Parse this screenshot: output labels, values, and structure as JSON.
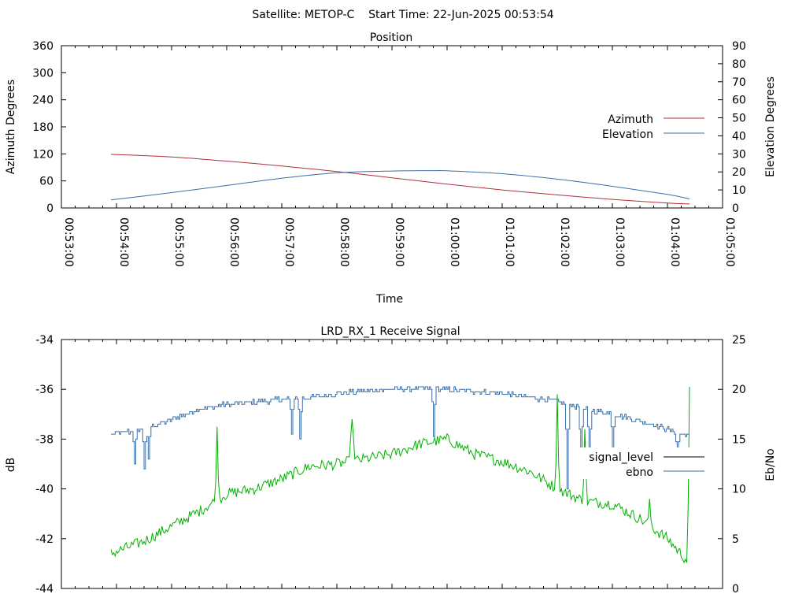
{
  "header": {
    "title": "Satellite: METOP-C    Start Time: 22-Jun-2025 00:53:54"
  },
  "colors": {
    "azimuth": "#b0303a",
    "elevation": "#3a6fa8",
    "signal": "#00b000",
    "signal_legend": "#000000",
    "ebno": "#3a6fa8"
  },
  "chart_data": [
    {
      "type": "line",
      "title": "Position",
      "xlabel": "Time",
      "ylabel": "Azimuth Degrees",
      "y2label": "Elevation Degrees",
      "xlim": [
        "00:53:00",
        "01:05:00"
      ],
      "ylim": [
        0,
        360
      ],
      "y2lim": [
        0,
        90
      ],
      "x_ticks": [
        "00:53:00",
        "00:54:00",
        "00:55:00",
        "00:56:00",
        "00:57:00",
        "00:58:00",
        "00:59:00",
        "01:00:00",
        "01:01:00",
        "01:02:00",
        "01:03:00",
        "01:04:00",
        "01:05:00"
      ],
      "y_ticks": [
        "0",
        "60",
        "120",
        "180",
        "240",
        "300",
        "360"
      ],
      "y2_ticks": [
        "0",
        "10",
        "20",
        "30",
        "40",
        "50",
        "60",
        "70",
        "80",
        "90"
      ],
      "legend_position": "right",
      "grid": false,
      "series": [
        {
          "name": "Azimuth",
          "axis": "left",
          "x": [
            "00:53:54",
            "00:55:00",
            "00:56:00",
            "00:57:00",
            "00:58:00",
            "00:59:00",
            "01:00:00",
            "01:01:00",
            "01:02:00",
            "01:03:00",
            "01:04:00",
            "01:04:24"
          ],
          "values": [
            119,
            113,
            104,
            93,
            81,
            67,
            53,
            40,
            29,
            19,
            11,
            9
          ]
        },
        {
          "name": "Elevation",
          "axis": "right",
          "x": [
            "00:53:54",
            "00:55:00",
            "00:56:00",
            "00:57:00",
            "00:58:00",
            "00:59:00",
            "00:59:45",
            "01:00:00",
            "01:01:00",
            "01:02:00",
            "01:03:00",
            "01:04:00",
            "01:04:24"
          ],
          "values": [
            4.5,
            8.5,
            12.5,
            16.5,
            19.5,
            20.5,
            20.7,
            20.6,
            19,
            16,
            12,
            7.5,
            5
          ]
        }
      ]
    },
    {
      "type": "line",
      "title": "LRD_RX_1 Receive Signal",
      "ylabel": "dB",
      "y2label": "Eb/No",
      "xlim": [
        "00:53:00",
        "01:05:00"
      ],
      "ylim": [
        -44,
        -34
      ],
      "y2lim": [
        0,
        25
      ],
      "y_ticks": [
        "-44",
        "-42",
        "-40",
        "-38",
        "-36",
        "-34"
      ],
      "y2_ticks": [
        "0",
        "5",
        "10",
        "15",
        "20",
        "25"
      ],
      "legend_position": "right",
      "grid": false,
      "series": [
        {
          "name": "signal_level",
          "axis": "left",
          "x": [
            "00:53:54",
            "00:54:30",
            "00:55:00",
            "00:55:30",
            "00:56:00",
            "00:56:30",
            "00:57:00",
            "00:57:30",
            "00:58:00",
            "00:58:30",
            "00:59:00",
            "00:59:30",
            "01:00:00",
            "01:00:30",
            "01:01:00",
            "01:01:30",
            "01:02:00",
            "01:02:30",
            "01:03:00",
            "01:03:30",
            "01:04:00",
            "01:04:24"
          ],
          "values": [
            -42.6,
            -42.1,
            -41.5,
            -40.9,
            -40.2,
            -40.0,
            -39.6,
            -39.1,
            -39.0,
            -38.8,
            -38.6,
            -38.2,
            -38.0,
            -38.6,
            -38.9,
            -39.3,
            -40.0,
            -40.5,
            -40.6,
            -41.2,
            -42.0,
            -43.0
          ],
          "spikes": [
            {
              "x": "00:55:50",
              "value": -37.5
            },
            {
              "x": "00:58:16",
              "value": -36.2
            },
            {
              "x": "00:58:17",
              "value": -37.2
            },
            {
              "x": "01:02:00",
              "value": -36.2
            },
            {
              "x": "01:02:30",
              "value": -37.6
            },
            {
              "x": "01:03:40",
              "value": -40.4
            },
            {
              "x": "01:04:24",
              "value": -35.9
            }
          ]
        },
        {
          "name": "ebno",
          "axis": "right",
          "x": [
            "00:53:54",
            "00:54:30",
            "00:55:00",
            "00:55:30",
            "00:56:00",
            "00:56:30",
            "00:57:00",
            "00:57:30",
            "00:58:00",
            "00:58:30",
            "00:59:00",
            "00:59:30",
            "01:00:00",
            "01:00:30",
            "01:01:00",
            "01:01:30",
            "01:02:00",
            "01:02:30",
            "01:03:00",
            "01:03:30",
            "01:04:00",
            "01:04:24"
          ],
          "values": [
            15.5,
            16.0,
            17.0,
            18.0,
            18.5,
            18.7,
            19.0,
            19.2,
            19.6,
            19.8,
            20.0,
            20.1,
            20.0,
            19.8,
            19.6,
            19.2,
            18.8,
            18.0,
            17.5,
            16.8,
            16.0,
            15.3
          ],
          "dips": [
            {
              "x": "00:54:20",
              "value": 12.6
            },
            {
              "x": "00:54:30",
              "value": 12.0
            },
            {
              "x": "00:54:35",
              "value": 12.9
            },
            {
              "x": "00:57:10",
              "value": 15.5
            },
            {
              "x": "00:57:20",
              "value": 15.1
            },
            {
              "x": "00:59:45",
              "value": 15.3
            },
            {
              "x": "01:02:10",
              "value": 10.0
            },
            {
              "x": "01:02:25",
              "value": 11.3
            },
            {
              "x": "01:02:35",
              "value": 12.0
            },
            {
              "x": "01:03:00",
              "value": 14.0
            },
            {
              "x": "01:04:10",
              "value": 12.7
            }
          ]
        }
      ]
    }
  ]
}
